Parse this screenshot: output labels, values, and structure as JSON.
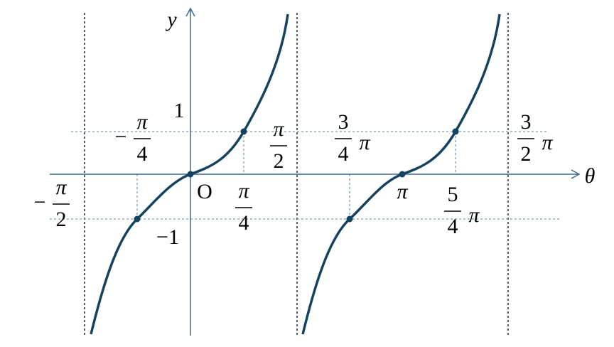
{
  "axes": {
    "x_label": "θ",
    "y_label": "y",
    "origin": "O"
  },
  "y_labels": [
    "1",
    "−1"
  ],
  "x_labels": [
    {
      "sign": "−",
      "numerator": "π",
      "denominator": "2"
    },
    {
      "sign": "−",
      "numerator": "π",
      "denominator": "4"
    },
    {
      "numerator": "π",
      "denominator": "4"
    },
    {
      "numerator": "π",
      "denominator": "2"
    },
    {
      "numerator": "3",
      "denominator": "4",
      "suffix": "π"
    },
    {
      "text": "π"
    },
    {
      "numerator": "5",
      "denominator": "4",
      "suffix": "π"
    },
    {
      "numerator": "3",
      "denominator": "2",
      "suffix": "π"
    }
  ]
}
